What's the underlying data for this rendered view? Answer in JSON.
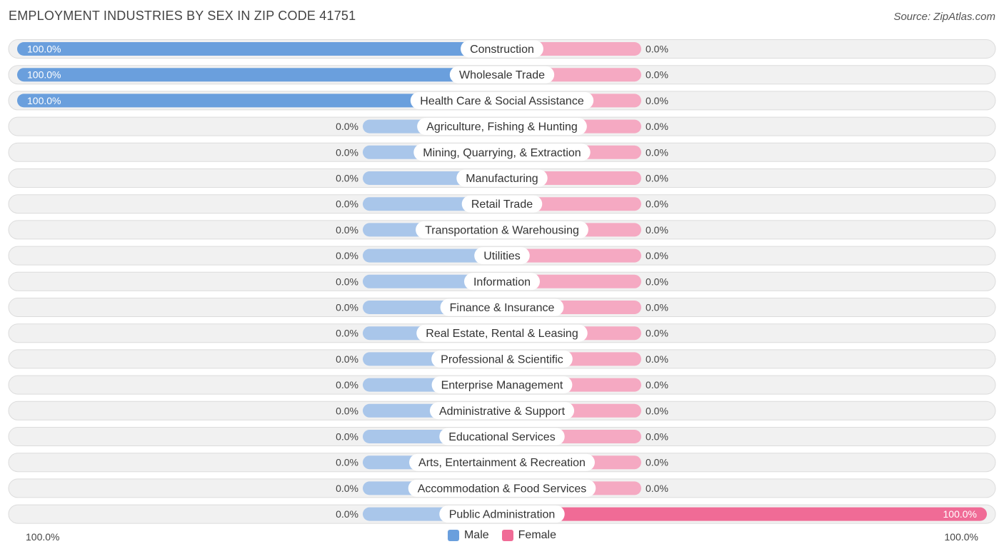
{
  "title": "EMPLOYMENT INDUSTRIES BY SEX IN ZIP CODE 41751",
  "source": "Source: ZipAtlas.com",
  "colors": {
    "male": "#6a9fdd",
    "male_light": "#a9c6ea",
    "female": "#f06b96",
    "female_light": "#f5a9c2"
  },
  "legend": {
    "male_label": "Male",
    "female_label": "Female"
  },
  "axis": {
    "left_label": "100.0%",
    "right_label": "100.0%"
  },
  "chart_data": {
    "type": "bar",
    "orientation": "horizontal-diverging",
    "title": "EMPLOYMENT INDUSTRIES BY SEX IN ZIP CODE 41751",
    "xlim": [
      -100,
      100
    ],
    "categories": [
      "Construction",
      "Wholesale Trade",
      "Health Care & Social Assistance",
      "Agriculture, Fishing & Hunting",
      "Mining, Quarrying, & Extraction",
      "Manufacturing",
      "Retail Trade",
      "Transportation & Warehousing",
      "Utilities",
      "Information",
      "Finance & Insurance",
      "Real Estate, Rental & Leasing",
      "Professional & Scientific",
      "Enterprise Management",
      "Administrative & Support",
      "Educational Services",
      "Arts, Entertainment & Recreation",
      "Accommodation & Food Services",
      "Public Administration"
    ],
    "series": [
      {
        "name": "Male",
        "values": [
          100,
          100,
          100,
          0,
          0,
          0,
          0,
          0,
          0,
          0,
          0,
          0,
          0,
          0,
          0,
          0,
          0,
          0,
          0
        ],
        "labels": [
          "100.0%",
          "100.0%",
          "100.0%",
          "0.0%",
          "0.0%",
          "0.0%",
          "0.0%",
          "0.0%",
          "0.0%",
          "0.0%",
          "0.0%",
          "0.0%",
          "0.0%",
          "0.0%",
          "0.0%",
          "0.0%",
          "0.0%",
          "0.0%",
          "0.0%"
        ]
      },
      {
        "name": "Female",
        "values": [
          0,
          0,
          0,
          0,
          0,
          0,
          0,
          0,
          0,
          0,
          0,
          0,
          0,
          0,
          0,
          0,
          0,
          0,
          100
        ],
        "labels": [
          "0.0%",
          "0.0%",
          "0.0%",
          "0.0%",
          "0.0%",
          "0.0%",
          "0.0%",
          "0.0%",
          "0.0%",
          "0.0%",
          "0.0%",
          "0.0%",
          "0.0%",
          "0.0%",
          "0.0%",
          "0.0%",
          "0.0%",
          "0.0%",
          "100.0%"
        ]
      }
    ]
  }
}
